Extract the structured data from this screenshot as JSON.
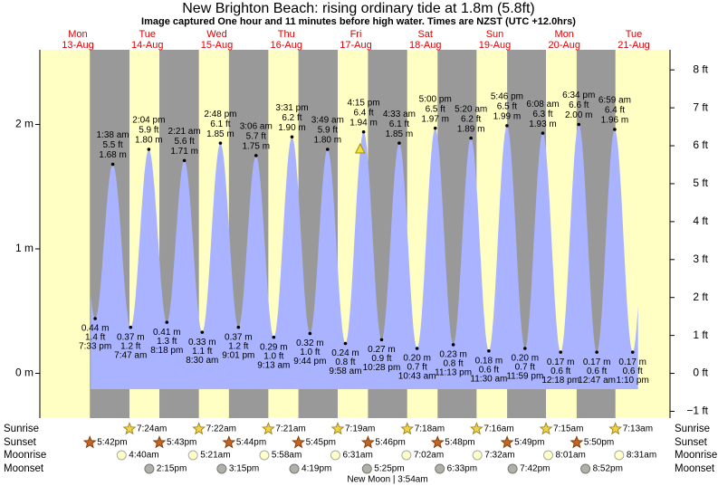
{
  "chart_data": {
    "type": "tide",
    "title": "New Brighton Beach: rising  ordinary tide at 1.8m (5.8ft)",
    "subtitle": "Image captured One hour and 11 minutes before high water. Times are NZST (UTC +12.0hrs)",
    "days": [
      {
        "name": "Mon",
        "date": "13-Aug"
      },
      {
        "name": "Tue",
        "date": "14-Aug"
      },
      {
        "name": "Wed",
        "date": "15-Aug"
      },
      {
        "name": "Thu",
        "date": "16-Aug"
      },
      {
        "name": "Fri",
        "date": "17-Aug"
      },
      {
        "name": "Sat",
        "date": "18-Aug"
      },
      {
        "name": "Sun",
        "date": "19-Aug"
      },
      {
        "name": "Mon",
        "date": "20-Aug"
      },
      {
        "name": "Tue",
        "date": "21-Aug"
      }
    ],
    "ylim": [
      -0.36,
      2.6
    ],
    "yticks": [
      {
        "value": 0,
        "label": "0 m"
      },
      {
        "value": 1,
        "label": "1 m"
      },
      {
        "value": 2,
        "label": "2 m"
      }
    ],
    "y2lim": [
      -1.18,
      8.53
    ],
    "y2ticks": [
      {
        "value": -1,
        "label": "−1 ft"
      },
      {
        "value": 0,
        "label": "0 ft"
      },
      {
        "value": 1,
        "label": "1 ft"
      },
      {
        "value": 2,
        "label": "2 ft"
      },
      {
        "value": 3,
        "label": "3 ft"
      },
      {
        "value": 4,
        "label": "4 ft"
      },
      {
        "value": 5,
        "label": "5 ft"
      },
      {
        "value": 6,
        "label": "6 ft"
      },
      {
        "value": 7,
        "label": "7 ft"
      },
      {
        "value": 8,
        "label": "8 ft"
      }
    ],
    "color": "#a9b3ff",
    "tides": [
      {
        "date": "13-Aug",
        "time": "7:33 pm",
        "height": 0.44,
        "height_label": "0.44 m",
        "ft_label": "1.4 ft"
      },
      {
        "date": "14-Aug",
        "time": "1:38 am",
        "height": 1.68,
        "height_label": "1.68 m",
        "ft_label": "5.5 ft"
      },
      {
        "date": "14-Aug",
        "time": "7:47 am",
        "height": 0.37,
        "height_label": "0.37 m",
        "ft_label": "1.2 ft"
      },
      {
        "date": "14-Aug",
        "time": "2:04 pm",
        "height": 1.8,
        "height_label": "1.80 m",
        "ft_label": "5.9 ft"
      },
      {
        "date": "14-Aug",
        "time": "8:18 pm",
        "height": 0.41,
        "height_label": "0.41 m",
        "ft_label": "1.3 ft"
      },
      {
        "date": "15-Aug",
        "time": "2:21 am",
        "height": 1.71,
        "height_label": "1.71 m",
        "ft_label": "5.6 ft"
      },
      {
        "date": "15-Aug",
        "time": "8:30 am",
        "height": 0.33,
        "height_label": "0.33 m",
        "ft_label": "1.1 ft"
      },
      {
        "date": "15-Aug",
        "time": "2:48 pm",
        "height": 1.85,
        "height_label": "1.85 m",
        "ft_label": "6.1 ft"
      },
      {
        "date": "15-Aug",
        "time": "9:01 pm",
        "height": 0.37,
        "height_label": "0.37 m",
        "ft_label": "1.2 ft"
      },
      {
        "date": "16-Aug",
        "time": "3:06 am",
        "height": 1.75,
        "height_label": "1.75 m",
        "ft_label": "5.7 ft"
      },
      {
        "date": "16-Aug",
        "time": "9:13 am",
        "height": 0.29,
        "height_label": "0.29 m",
        "ft_label": "1.0 ft"
      },
      {
        "date": "16-Aug",
        "time": "3:31 pm",
        "height": 1.9,
        "height_label": "1.90 m",
        "ft_label": "6.2 ft"
      },
      {
        "date": "16-Aug",
        "time": "9:44 pm",
        "height": 0.32,
        "height_label": "0.32 m",
        "ft_label": "1.0 ft"
      },
      {
        "date": "17-Aug",
        "time": "3:49 am",
        "height": 1.8,
        "height_label": "1.80 m",
        "ft_label": "5.9 ft"
      },
      {
        "date": "17-Aug",
        "time": "9:58 am",
        "height": 0.24,
        "height_label": "0.24 m",
        "ft_label": "0.8 ft"
      },
      {
        "date": "17-Aug",
        "time": "4:15 pm",
        "height": 1.94,
        "height_label": "1.94 m",
        "ft_label": "6.4 ft"
      },
      {
        "date": "17-Aug",
        "time": "10:28 pm",
        "height": 0.27,
        "height_label": "0.27 m",
        "ft_label": "0.9 ft"
      },
      {
        "date": "18-Aug",
        "time": "4:33 am",
        "height": 1.85,
        "height_label": "1.85 m",
        "ft_label": "6.1 ft"
      },
      {
        "date": "18-Aug",
        "time": "10:43 am",
        "height": 0.2,
        "height_label": "0.20 m",
        "ft_label": "0.7 ft"
      },
      {
        "date": "18-Aug",
        "time": "5:00 pm",
        "height": 1.97,
        "height_label": "1.97 m",
        "ft_label": "6.5 ft"
      },
      {
        "date": "18-Aug",
        "time": "11:13 pm",
        "height": 0.23,
        "height_label": "0.23 m",
        "ft_label": "0.8 ft"
      },
      {
        "date": "19-Aug",
        "time": "5:20 am",
        "height": 1.89,
        "height_label": "1.89 m",
        "ft_label": "6.2 ft"
      },
      {
        "date": "19-Aug",
        "time": "11:30 am",
        "height": 0.18,
        "height_label": "0.18 m",
        "ft_label": "0.6 ft"
      },
      {
        "date": "19-Aug",
        "time": "5:46 pm",
        "height": 1.99,
        "height_label": "1.99 m",
        "ft_label": "6.5 ft"
      },
      {
        "date": "19-Aug",
        "time": "11:59 pm",
        "height": 0.2,
        "height_label": "0.20 m",
        "ft_label": "0.7 ft"
      },
      {
        "date": "20-Aug",
        "time": "6:08 am",
        "height": 1.93,
        "height_label": "1.93 m",
        "ft_label": "6.3 ft"
      },
      {
        "date": "20-Aug",
        "time": "12:18 pm",
        "height": 0.17,
        "height_label": "0.17 m",
        "ft_label": "0.6 ft"
      },
      {
        "date": "20-Aug",
        "time": "6:34 pm",
        "height": 2.0,
        "height_label": "2.00 m",
        "ft_label": "6.6 ft"
      },
      {
        "date": "21-Aug",
        "time": "12:47 am",
        "height": 0.17,
        "height_label": "0.17 m",
        "ft_label": "0.6 ft"
      },
      {
        "date": "21-Aug",
        "time": "6:59 am",
        "height": 1.96,
        "height_label": "1.96 m",
        "ft_label": "6.4 ft"
      },
      {
        "date": "21-Aug",
        "time": "1:10 pm",
        "height": 0.17,
        "height_label": "0.17 m",
        "ft_label": "0.6 ft"
      }
    ],
    "now": {
      "date": "17-Aug",
      "time": "3:04 pm",
      "height": 1.8
    },
    "rows": [
      {
        "name": "Sunrise",
        "kind": "sunrise",
        "events": [
          {
            "date": "14-Aug",
            "time": "7:24am"
          },
          {
            "date": "15-Aug",
            "time": "7:22am"
          },
          {
            "date": "16-Aug",
            "time": "7:21am"
          },
          {
            "date": "17-Aug",
            "time": "7:19am"
          },
          {
            "date": "18-Aug",
            "time": "7:18am"
          },
          {
            "date": "19-Aug",
            "time": "7:16am"
          },
          {
            "date": "20-Aug",
            "time": "7:15am"
          },
          {
            "date": "21-Aug",
            "time": "7:13am"
          }
        ]
      },
      {
        "name": "Sunset",
        "kind": "sunset",
        "events": [
          {
            "date": "13-Aug",
            "time": "5:42pm"
          },
          {
            "date": "14-Aug",
            "time": "5:43pm"
          },
          {
            "date": "15-Aug",
            "time": "5:44pm"
          },
          {
            "date": "16-Aug",
            "time": "5:45pm"
          },
          {
            "date": "17-Aug",
            "time": "5:46pm"
          },
          {
            "date": "18-Aug",
            "time": "5:48pm"
          },
          {
            "date": "19-Aug",
            "time": "5:49pm"
          },
          {
            "date": "20-Aug",
            "time": "5:50pm"
          }
        ]
      },
      {
        "name": "Moonrise",
        "kind": "moonrise",
        "events": [
          {
            "date": "14-Aug",
            "time": "4:40am"
          },
          {
            "date": "15-Aug",
            "time": "5:21am"
          },
          {
            "date": "16-Aug",
            "time": "5:58am"
          },
          {
            "date": "17-Aug",
            "time": "6:31am"
          },
          {
            "date": "18-Aug",
            "time": "7:02am"
          },
          {
            "date": "19-Aug",
            "time": "7:32am"
          },
          {
            "date": "20-Aug",
            "time": "8:01am"
          },
          {
            "date": "21-Aug",
            "time": "8:31am"
          }
        ]
      },
      {
        "name": "Moonset",
        "kind": "moonset",
        "events": [
          {
            "date": "14-Aug",
            "time": "2:15pm"
          },
          {
            "date": "15-Aug",
            "time": "3:15pm"
          },
          {
            "date": "16-Aug",
            "time": "4:19pm"
          },
          {
            "date": "17-Aug",
            "time": "5:25pm"
          },
          {
            "date": "18-Aug",
            "time": "6:33pm"
          },
          {
            "date": "19-Aug",
            "time": "7:42pm"
          },
          {
            "date": "20-Aug",
            "time": "8:52pm"
          }
        ]
      }
    ],
    "moon_phase": "New Moon | 3:54am"
  }
}
